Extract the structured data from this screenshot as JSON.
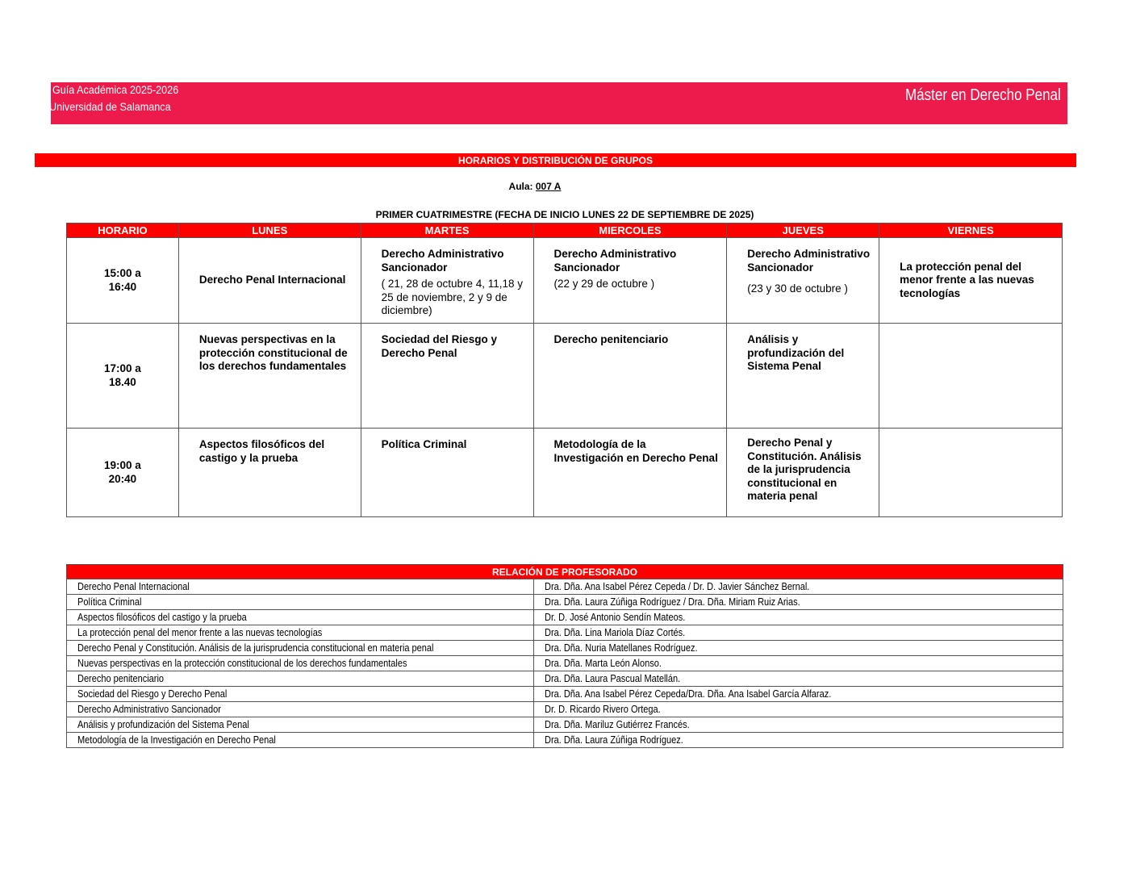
{
  "header": {
    "guide": "Guía Académica 2025-2026",
    "university": "Universidad de Salamanca",
    "program": "Máster en Derecho Penal",
    "color": "#ec1b4b"
  },
  "section_title": "HORARIOS Y DISTRIBUCIÓN DE GRUPOS",
  "aula": {
    "label": "Aula:",
    "value": "007 A"
  },
  "semester_title": "PRIMER CUATRIMESTRE (FECHA DE INICIO LUNES 22 DE SEPTIEMBRE DE 2025)",
  "schedule": {
    "headers": [
      "HORARIO",
      "LUNES",
      "MARTES",
      "MIERCOLES",
      "JUEVES",
      "VIERNES"
    ],
    "rows": [
      {
        "time": [
          "15:00 a",
          "16:40"
        ],
        "cells": [
          {
            "title": "Derecho Penal Internacional",
            "note": ""
          },
          {
            "title": "Derecho Administrativo Sancionador",
            "note": "( 21, 28 de octubre 4, 11,18 y 25 de noviembre, 2 y 9 de diciembre)"
          },
          {
            "title": "Derecho Administrativo Sancionador",
            "note": "(22 y 29 de octubre )"
          },
          {
            "title": "Derecho Administrativo Sancionador",
            "note": "(23 y 30 de octubre )"
          },
          {
            "title": "La protección penal del menor frente a las nuevas tecnologías",
            "note": ""
          }
        ]
      },
      {
        "time": [
          "17:00 a",
          "18.40"
        ],
        "cells": [
          {
            "title": "Nuevas perspectivas en la protección constitucional de los derechos fundamentales",
            "note": ""
          },
          {
            "title": "Sociedad del Riesgo y Derecho Penal",
            "note": ""
          },
          {
            "title": "Derecho penitenciario",
            "note": ""
          },
          {
            "title": "Análisis y profundización del Sistema Penal",
            "note": ""
          },
          {
            "title": "",
            "note": ""
          }
        ]
      },
      {
        "time": [
          "19:00 a",
          "20:40"
        ],
        "cells": [
          {
            "title": "Aspectos filosóficos del castigo y la prueba",
            "note": ""
          },
          {
            "title": "Política Criminal",
            "note": ""
          },
          {
            "title": "Metodología de la Investigación en Derecho Penal",
            "note": ""
          },
          {
            "title": "Derecho Penal y Constitución. Análisis de la jurisprudencia constitucional en materia penal",
            "note": ""
          },
          {
            "title": "",
            "note": ""
          }
        ]
      }
    ]
  },
  "faculty": {
    "title": "RELACIÓN DE PROFESORADO",
    "rows": [
      [
        "Derecho Penal Internacional",
        "Dra. Dña. Ana Isabel Pérez Cepeda / Dr. D. Javier Sánchez Bernal."
      ],
      [
        "Política Criminal",
        "Dra. Dña. Laura Zúñiga Rodríguez / Dra. Dña. Miriam Ruiz Arias."
      ],
      [
        "Aspectos filosóficos del castigo y la prueba",
        "Dr. D. José Antonio Sendín Mateos."
      ],
      [
        "La protección penal del menor frente a las nuevas tecnologías",
        "Dra. Dña. Lina Mariola Díaz Cortés."
      ],
      [
        "Derecho Penal y Constitución. Análisis de la jurisprudencia constitucional en materia penal",
        "Dra. Dña. Nuria Matellanes Rodríguez."
      ],
      [
        "Nuevas perspectivas en la protección constitucional de los derechos fundamentales",
        "Dra. Dña. Marta León Alonso."
      ],
      [
        "Derecho penitenciario",
        "Dra. Dña. Laura Pascual Matellán."
      ],
      [
        "Sociedad del Riesgo y Derecho Penal",
        "Dra. Dña. Ana Isabel Pérez Cepeda/Dra. Dña. Ana Isabel García Alfaraz."
      ],
      [
        "Derecho Administrativo Sancionador",
        "Dr. D. Ricardo Rivero Ortega."
      ],
      [
        "Análisis y profundización del Sistema Penal",
        "Dra. Dña. Mariluz Gutiérrez Francés."
      ],
      [
        "Metodología de la Investigación en Derecho Penal",
        "Dra. Dña. Laura Zúñiga Rodríguez."
      ]
    ]
  }
}
